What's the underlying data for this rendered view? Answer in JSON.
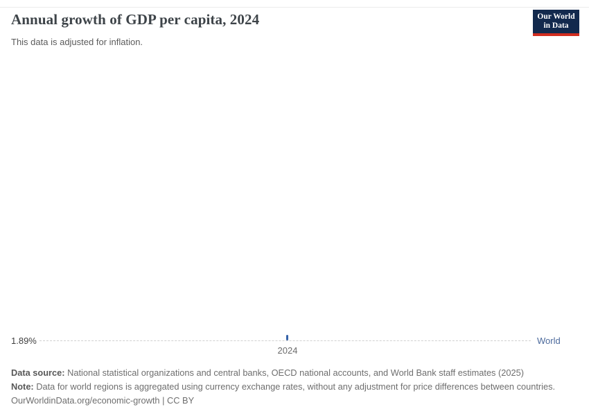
{
  "header": {
    "title": "Annual growth of GDP per capita, 2024",
    "subtitle": "This data is adjusted for inflation.",
    "logo": {
      "line1": "Our World",
      "line2": "in Data"
    }
  },
  "chart_data": {
    "type": "line",
    "title": "Annual growth of GDP per capita, 2024",
    "subtitle": "This data is adjusted for inflation.",
    "categories": [
      "2024"
    ],
    "series": [
      {
        "name": "World",
        "x": [
          2024
        ],
        "values": [
          1.89
        ]
      }
    ],
    "value_axis_label": "1.89%",
    "unit": "%",
    "xlabel": "",
    "ylabel": "",
    "x_ticks": [
      "2024"
    ],
    "legend_position": "right",
    "grid": "single dashed horizontal line at data value",
    "colors": {
      "series_world": "#3562a8",
      "series_label": "#4c6a9c",
      "gridline": "#cfcfcf",
      "logo_navy": "#12294d",
      "logo_red": "#d12d1f"
    }
  },
  "footer": {
    "data_source_label": "Data source:",
    "data_source_text": " National statistical organizations and central banks, OECD national accounts, and World Bank staff estimates (2025)",
    "note_label": "Note:",
    "note_text": " Data for world regions is aggregated using currency exchange rates, without any adjustment for price differences between countries.",
    "license": "OurWorldinData.org/economic-growth | CC BY"
  }
}
